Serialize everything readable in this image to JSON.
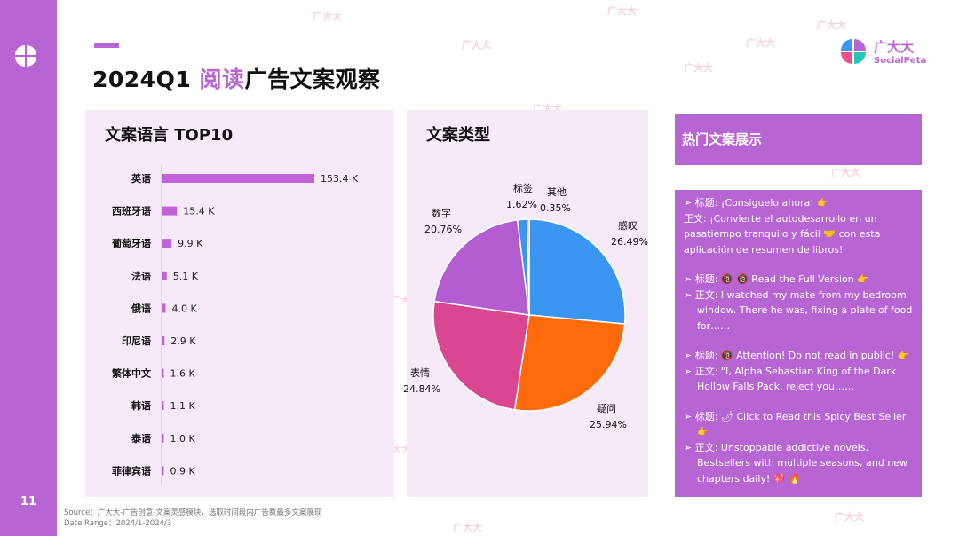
{
  "page": {
    "number": "11",
    "title_prefix": "2024Q1 ",
    "title_highlight": "阅读",
    "title_suffix": "广告文案观察",
    "brand_cn": "广大大",
    "brand_en": "SocialPeta",
    "watermark": "广大大",
    "source_line1": "Source：广大大-广告创意-文案灵感模块，选取时间段内广告数最多文案展现",
    "source_line2": "Date Range：2024/1-2024/3"
  },
  "colors": {
    "accent": "#b865d4",
    "panel_bg": "#f6eaf8"
  },
  "panels": {
    "language_title": "文案语言 TOP10",
    "type_title": "文案类型",
    "hot_title": "热门文案展示"
  },
  "chart_data": [
    {
      "type": "bar",
      "orientation": "horizontal",
      "title": "文案语言 TOP10",
      "categories": [
        "英语",
        "西班牙语",
        "葡萄牙语",
        "法语",
        "俄语",
        "印尼语",
        "繁体中文",
        "韩语",
        "泰语",
        "菲律宾语"
      ],
      "values": [
        153.4,
        15.4,
        9.9,
        5.1,
        4.0,
        2.9,
        1.6,
        1.1,
        1.0,
        0.9
      ],
      "value_labels": [
        "153.4 K",
        "15.4 K",
        "9.9 K",
        "5.1 K",
        "4.0 K",
        "2.9 K",
        "1.6 K",
        "1.1 K",
        "1.0 K",
        "0.9 K"
      ],
      "unit": "K",
      "color": "#c063d6",
      "xlim": [
        0,
        153.4
      ]
    },
    {
      "type": "pie",
      "title": "文案类型",
      "labels": [
        "感叹",
        "疑问",
        "表情",
        "数字",
        "标签",
        "其他"
      ],
      "values": [
        26.49,
        25.94,
        24.84,
        20.76,
        1.62,
        0.35
      ],
      "value_labels": [
        "26.49%",
        "25.94%",
        "24.84%",
        "20.76%",
        "1.62%",
        "0.35%"
      ],
      "colors": [
        "#3a96f2",
        "#ff6a0a",
        "#d8478f",
        "#b35dd0",
        "#3a96f2",
        "#ff6a0a"
      ]
    }
  ],
  "hot_copy": {
    "item1_line1": "➢  标题: ¡Consiguelo ahora!  👉",
    "item1_line2": "正文: ¡Convierte el autodesarrollo en un pasatiempo tranquilo y fácil  🤝  con esta aplicación de resumen de libros!",
    "item2_title": "➢  标题: 🔞 🔞 Read the Full Version 👉",
    "item2_body": "➢  正文: I watched my mate from my bedroom window. There he was, fixing a plate of food for……",
    "item3_title": "➢  标题: 🔞 Attention! Do not read in public!   👉",
    "item3_body": "➢  正文: \"I, Alpha Sebastian King of the Dark Hollow Falls Pack, reject you……",
    "item4_title": "➢  标题: 🌶 Click to Read this Spicy Best Seller 👉",
    "item4_body": "➢  正文: Unstoppable addictive novels. Bestsellers with multiple seasons, and new chapters daily!  💖 🔥"
  }
}
